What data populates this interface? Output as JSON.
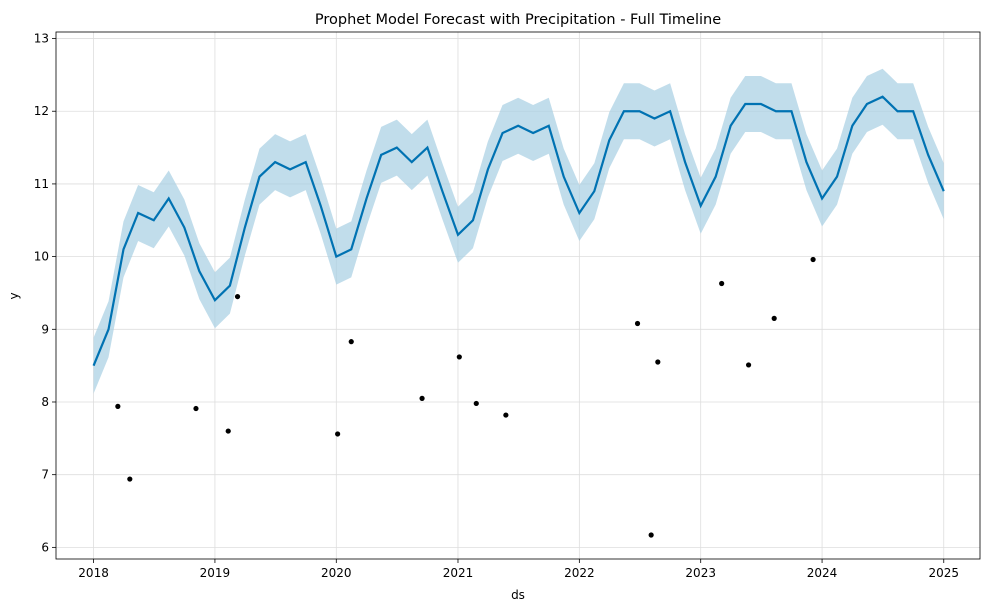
{
  "chart_data": {
    "type": "line",
    "title": "Prophet Model Forecast with Precipitation - Full Timeline",
    "xlabel": "ds",
    "ylabel": "y",
    "xlim": [
      "2017-09-10",
      "2025-04-20"
    ],
    "ylim": [
      5.84,
      13.09
    ],
    "x_ticks": [
      "2018",
      "2019",
      "2020",
      "2021",
      "2022",
      "2023",
      "2024",
      "2025"
    ],
    "y_ticks": [
      6,
      7,
      8,
      9,
      10,
      11,
      12,
      13
    ],
    "grid": true,
    "colors": {
      "forecast": "#0072b2",
      "interval": "#a6cee3",
      "observed": "#000000",
      "grid": "#dddddd"
    },
    "series": [
      {
        "role": "forecast",
        "x": [
          "2018-01-01",
          "2018-02-15",
          "2018-04-01",
          "2018-05-15",
          "2018-07-01",
          "2018-08-15",
          "2018-10-01",
          "2018-11-15",
          "2019-01-01",
          "2019-02-15",
          "2019-04-01",
          "2019-05-15",
          "2019-07-01",
          "2019-08-15",
          "2019-10-01",
          "2019-11-15",
          "2020-01-01",
          "2020-02-15",
          "2020-04-01",
          "2020-05-15",
          "2020-07-01",
          "2020-08-15",
          "2020-10-01",
          "2020-11-15",
          "2021-01-01",
          "2021-02-15",
          "2021-04-01",
          "2021-05-15",
          "2021-07-01",
          "2021-08-15",
          "2021-10-01",
          "2021-11-15",
          "2022-01-01",
          "2022-02-15",
          "2022-04-01",
          "2022-05-15",
          "2022-07-01",
          "2022-08-15",
          "2022-10-01",
          "2022-11-15",
          "2023-01-01",
          "2023-02-15",
          "2023-04-01",
          "2023-05-15",
          "2023-07-01",
          "2023-08-15",
          "2023-10-01",
          "2023-11-15",
          "2024-01-01",
          "2024-02-15",
          "2024-04-01",
          "2024-05-15",
          "2024-07-01",
          "2024-08-15",
          "2024-10-01",
          "2024-11-15",
          "2025-01-01"
        ],
        "y": [
          8.5,
          9.0,
          10.1,
          10.6,
          10.5,
          10.8,
          10.4,
          9.8,
          9.4,
          9.6,
          10.4,
          11.1,
          11.3,
          11.2,
          11.3,
          10.7,
          10.0,
          10.1,
          10.8,
          11.4,
          11.5,
          11.3,
          11.5,
          10.9,
          10.3,
          10.5,
          11.2,
          11.7,
          11.8,
          11.7,
          11.8,
          11.1,
          10.6,
          10.9,
          11.6,
          12.0,
          12.0,
          11.9,
          12.0,
          11.3,
          10.7,
          11.1,
          11.8,
          12.1,
          12.1,
          12.0,
          12.0,
          11.3,
          10.8,
          11.1,
          11.8,
          12.1,
          12.2,
          12.0,
          12.0,
          11.4,
          10.9
        ]
      },
      {
        "role": "observed",
        "points": [
          {
            "x": "2018-04-20",
            "y": 6.94
          },
          {
            "x": "2018-11-05",
            "y": 7.91
          },
          {
            "x": "2019-02-10",
            "y": 7.6
          },
          {
            "x": "2020-01-05",
            "y": 7.56
          },
          {
            "x": "2020-09-15",
            "y": 8.05
          },
          {
            "x": "2021-02-25",
            "y": 7.98
          },
          {
            "x": "2021-05-25",
            "y": 7.82
          },
          {
            "x": "2022-08-05",
            "y": 6.17
          },
          {
            "x": "2022-08-25",
            "y": 8.55
          },
          {
            "x": "2023-05-25",
            "y": 8.51
          },
          {
            "x": "2023-08-10",
            "y": 9.15
          },
          {
            "x": "2023-12-05",
            "y": 9.96
          },
          {
            "x": "2023-03-05",
            "y": 9.63
          },
          {
            "x": "2022-06-25",
            "y": 9.08
          },
          {
            "x": "2021-01-05",
            "y": 8.62
          },
          {
            "x": "2020-02-15",
            "y": 8.83
          },
          {
            "x": "2019-03-10",
            "y": 9.45
          },
          {
            "x": "2018-03-15",
            "y": 7.94
          }
        ]
      }
    ]
  }
}
